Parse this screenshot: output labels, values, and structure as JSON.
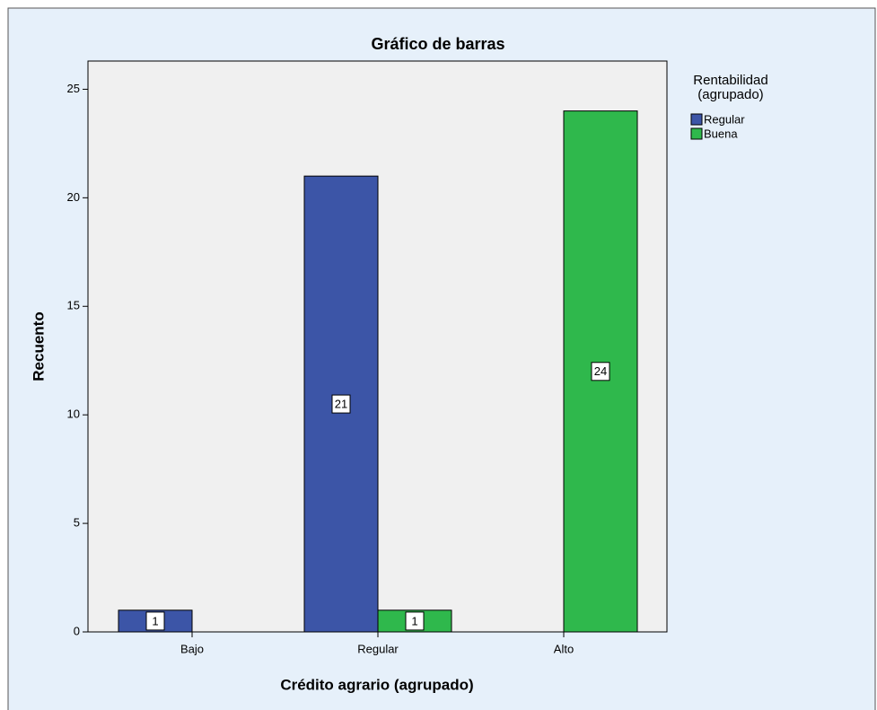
{
  "chart_data": {
    "type": "bar",
    "title": "Gráfico de barras",
    "x_label": "Crédito agrario  (agrupado)",
    "y_label": "Recuento",
    "legend_title": [
      "Rentabilidad",
      "(agrupado)"
    ],
    "legend_position": "right",
    "categories": [
      "Bajo",
      "Regular",
      "Alto"
    ],
    "series": [
      {
        "name": "Regular",
        "color": "#3c55a7",
        "values": [
          1,
          21,
          null
        ]
      },
      {
        "name": "Buena",
        "color": "#2fb84c",
        "values": [
          null,
          1,
          24
        ]
      }
    ],
    "ylim": [
      0,
      26.3
    ],
    "yticks": [
      0,
      5,
      10,
      15,
      20,
      25
    ]
  }
}
